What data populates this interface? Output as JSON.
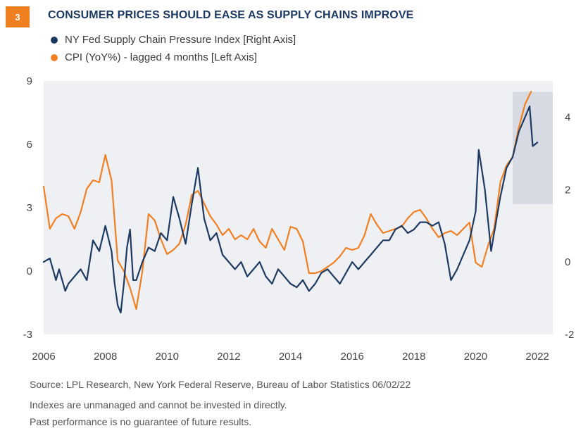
{
  "header": {
    "number": "3",
    "title": "CONSUMER PRICES SHOULD EASE AS SUPPLY CHAINS IMPROVE"
  },
  "footer": {
    "source": "Source: LPL Research, New York Federal Reserve, Bureau of Labor Statistics  06/02/22",
    "note1": "Indexes are unmanaged and cannot be invested in directly.",
    "note2": "Past performance is no guarantee of future results."
  },
  "chart_data": {
    "type": "line",
    "title": "CONSUMER PRICES SHOULD EASE AS SUPPLY CHAINS IMPROVE",
    "legend_position": "top-left",
    "grid": false,
    "background_color": "#eff0f3",
    "x_axis": {
      "range": [
        2006,
        2022.5
      ],
      "ticks": [
        "2006",
        "2008",
        "2010",
        "2012",
        "2014",
        "2016",
        "2018",
        "2020",
        "2022"
      ]
    },
    "y_left": {
      "range": [
        -3,
        9
      ],
      "ticks": [
        "9",
        "6",
        "3",
        "0",
        "-3"
      ]
    },
    "y_right": {
      "range": [
        -2,
        5
      ],
      "ticks": [
        "4",
        "2",
        "0",
        "-2"
      ]
    },
    "highlight_region": {
      "x": [
        2021.2,
        2022.5
      ],
      "y_right": [
        1.6,
        4.7
      ],
      "color": "#d8dae3"
    },
    "series": [
      {
        "name": "NY Fed Supply Chain Pressure Index [Right Axis]",
        "axis": "right",
        "color": "#1d3a63",
        "x": [
          2006.0,
          2006.2,
          2006.4,
          2006.5,
          2006.7,
          2006.8,
          2007.0,
          2007.2,
          2007.4,
          2007.6,
          2007.8,
          2008.0,
          2008.2,
          2008.3,
          2008.4,
          2008.5,
          2008.6,
          2008.7,
          2008.8,
          2008.9,
          2009.0,
          2009.2,
          2009.4,
          2009.6,
          2009.8,
          2010.0,
          2010.2,
          2010.4,
          2010.6,
          2010.8,
          2011.0,
          2011.2,
          2011.4,
          2011.6,
          2011.8,
          2012.0,
          2012.2,
          2012.4,
          2012.6,
          2012.8,
          2013.0,
          2013.2,
          2013.4,
          2013.6,
          2013.8,
          2014.0,
          2014.2,
          2014.4,
          2014.6,
          2014.8,
          2015.0,
          2015.2,
          2015.4,
          2015.6,
          2015.8,
          2016.0,
          2016.2,
          2016.4,
          2016.6,
          2016.8,
          2017.0,
          2017.2,
          2017.4,
          2017.6,
          2017.8,
          2018.0,
          2018.2,
          2018.4,
          2018.6,
          2018.8,
          2019.0,
          2019.2,
          2019.4,
          2019.6,
          2019.8,
          2020.0,
          2020.1,
          2020.3,
          2020.5,
          2020.6,
          2020.8,
          2021.0,
          2021.2,
          2021.4,
          2021.6,
          2021.75,
          2021.85,
          2022.0
        ],
        "y": [
          0.0,
          0.1,
          -0.5,
          -0.2,
          -0.8,
          -0.6,
          -0.4,
          -0.2,
          -0.5,
          0.6,
          0.3,
          1.0,
          0.3,
          -0.6,
          -1.2,
          -1.4,
          -0.6,
          0.4,
          0.9,
          -0.5,
          -0.5,
          0.0,
          0.4,
          0.3,
          0.8,
          0.6,
          1.8,
          1.2,
          0.5,
          1.6,
          2.6,
          1.2,
          0.6,
          0.8,
          0.2,
          0.0,
          -0.2,
          0.0,
          -0.4,
          -0.2,
          0.0,
          -0.4,
          -0.6,
          -0.2,
          -0.4,
          -0.6,
          -0.7,
          -0.5,
          -0.8,
          -0.6,
          -0.3,
          -0.2,
          -0.4,
          -0.6,
          -0.3,
          0.0,
          -0.2,
          0.0,
          0.2,
          0.4,
          0.6,
          0.6,
          0.9,
          1.0,
          0.8,
          0.9,
          1.1,
          1.1,
          1.0,
          1.1,
          0.5,
          -0.5,
          -0.2,
          0.2,
          0.6,
          1.4,
          3.1,
          2.0,
          0.3,
          0.8,
          1.8,
          2.6,
          2.9,
          3.6,
          4.0,
          4.3,
          3.2,
          3.3
        ]
      },
      {
        "name": "CPI (YoY%) - lagged 4 months [Left Axis]",
        "axis": "left",
        "color": "#f07f22",
        "x": [
          2006.0,
          2006.2,
          2006.4,
          2006.6,
          2006.8,
          2007.0,
          2007.2,
          2007.4,
          2007.6,
          2007.8,
          2008.0,
          2008.2,
          2008.4,
          2008.6,
          2008.8,
          2009.0,
          2009.2,
          2009.4,
          2009.6,
          2009.8,
          2010.0,
          2010.2,
          2010.4,
          2010.6,
          2010.8,
          2011.0,
          2011.2,
          2011.4,
          2011.6,
          2011.8,
          2012.0,
          2012.2,
          2012.4,
          2012.6,
          2012.8,
          2013.0,
          2013.2,
          2013.4,
          2013.6,
          2013.8,
          2014.0,
          2014.2,
          2014.4,
          2014.6,
          2014.8,
          2015.0,
          2015.2,
          2015.4,
          2015.6,
          2015.8,
          2016.0,
          2016.2,
          2016.4,
          2016.6,
          2016.8,
          2017.0,
          2017.2,
          2017.4,
          2017.6,
          2017.8,
          2018.0,
          2018.2,
          2018.4,
          2018.6,
          2018.8,
          2019.0,
          2019.2,
          2019.4,
          2019.6,
          2019.8,
          2020.0,
          2020.2,
          2020.4,
          2020.6,
          2020.8,
          2021.0,
          2021.2,
          2021.4,
          2021.6,
          2021.8
        ],
        "y": [
          4.0,
          2.0,
          2.5,
          2.7,
          2.6,
          2.0,
          2.8,
          3.9,
          4.3,
          4.2,
          5.5,
          4.3,
          0.5,
          0.0,
          -0.8,
          -1.8,
          0.0,
          2.7,
          2.4,
          1.5,
          0.8,
          1.0,
          1.3,
          2.2,
          3.6,
          3.8,
          3.2,
          2.6,
          2.2,
          1.7,
          2.0,
          1.5,
          1.7,
          1.5,
          2.0,
          1.4,
          1.1,
          2.0,
          1.5,
          1.0,
          2.1,
          2.0,
          1.4,
          -0.1,
          -0.1,
          0.0,
          0.2,
          0.4,
          0.7,
          1.1,
          1.0,
          1.1,
          1.7,
          2.7,
          2.2,
          1.8,
          1.9,
          2.0,
          2.1,
          2.5,
          2.8,
          2.9,
          2.5,
          2.0,
          1.6,
          1.8,
          1.9,
          1.7,
          2.0,
          2.3,
          0.4,
          0.2,
          1.2,
          2.0,
          4.2,
          5.0,
          5.4,
          6.8,
          7.9,
          8.5
        ]
      }
    ]
  }
}
